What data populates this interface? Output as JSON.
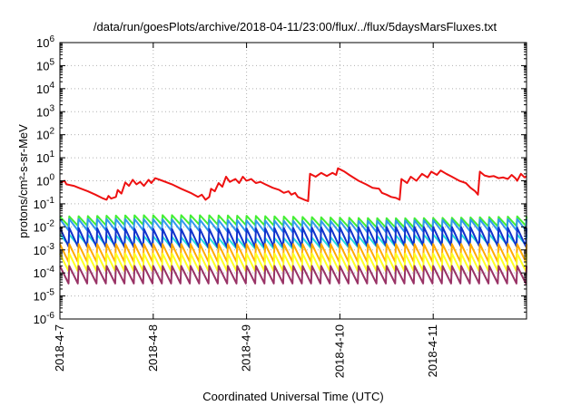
{
  "chart_data": {
    "type": "line",
    "title": "/data/run/goesPlots/archive/2018-04-11/23:00/flux/../flux/5daysMarsFluxes.txt",
    "xlabel": "Coordinated Universal Time (UTC)",
    "ylabel": "protons/cm²-s-sr-MeV",
    "y_scale": "log",
    "ylim": [
      1e-06,
      1000000.0
    ],
    "xlim": [
      0,
      5
    ],
    "grid": true,
    "y_ticks": [
      {
        "base": "10",
        "exp": "-6"
      },
      {
        "base": "10",
        "exp": "-5"
      },
      {
        "base": "10",
        "exp": "-4"
      },
      {
        "base": "10",
        "exp": "-3"
      },
      {
        "base": "10",
        "exp": "-2"
      },
      {
        "base": "10",
        "exp": "-1"
      },
      {
        "base": "10",
        "exp": "0"
      },
      {
        "base": "10",
        "exp": "1"
      },
      {
        "base": "10",
        "exp": "2"
      },
      {
        "base": "10",
        "exp": "3"
      },
      {
        "base": "10",
        "exp": "4"
      },
      {
        "base": "10",
        "exp": "5"
      },
      {
        "base": "10",
        "exp": "6"
      }
    ],
    "x_ticks": [
      {
        "label": "2018-4-7",
        "x": 0
      },
      {
        "label": "2018-4-8",
        "x": 1
      },
      {
        "label": "2018-4-9",
        "x": 2
      },
      {
        "label": "2018-4-10",
        "x": 3
      },
      {
        "label": "2018-4-11",
        "x": 4
      }
    ],
    "series": [
      {
        "color": "#ee1111",
        "width": 2,
        "points": [
          [
            0.0,
            0.8
          ],
          [
            0.05,
            1.0
          ],
          [
            0.07,
            0.7
          ],
          [
            0.15,
            0.6
          ],
          [
            0.2,
            0.5
          ],
          [
            0.3,
            0.35
          ],
          [
            0.38,
            0.25
          ],
          [
            0.45,
            0.18
          ],
          [
            0.5,
            0.15
          ],
          [
            0.52,
            0.22
          ],
          [
            0.55,
            0.17
          ],
          [
            0.6,
            0.2
          ],
          [
            0.62,
            0.4
          ],
          [
            0.66,
            0.28
          ],
          [
            0.7,
            0.85
          ],
          [
            0.74,
            0.6
          ],
          [
            0.78,
            1.1
          ],
          [
            0.82,
            0.7
          ],
          [
            0.86,
            0.9
          ],
          [
            0.9,
            0.6
          ],
          [
            0.95,
            1.1
          ],
          [
            0.98,
            0.8
          ],
          [
            1.02,
            1.3
          ],
          [
            1.1,
            1.0
          ],
          [
            1.2,
            0.7
          ],
          [
            1.3,
            0.45
          ],
          [
            1.4,
            0.3
          ],
          [
            1.48,
            0.2
          ],
          [
            1.52,
            0.25
          ],
          [
            1.56,
            0.15
          ],
          [
            1.6,
            0.2
          ],
          [
            1.62,
            0.45
          ],
          [
            1.66,
            0.35
          ],
          [
            1.7,
            0.8
          ],
          [
            1.74,
            0.55
          ],
          [
            1.78,
            1.5
          ],
          [
            1.82,
            0.9
          ],
          [
            1.88,
            1.2
          ],
          [
            1.92,
            0.8
          ],
          [
            1.96,
            1.5
          ],
          [
            2.0,
            1.0
          ],
          [
            2.05,
            1.2
          ],
          [
            2.1,
            0.8
          ],
          [
            2.15,
            0.9
          ],
          [
            2.2,
            0.7
          ],
          [
            2.28,
            0.5
          ],
          [
            2.35,
            0.4
          ],
          [
            2.4,
            0.3
          ],
          [
            2.45,
            0.35
          ],
          [
            2.48,
            0.25
          ],
          [
            2.52,
            0.3
          ],
          [
            2.55,
            0.2
          ],
          [
            2.62,
            0.15
          ],
          [
            2.66,
            0.13
          ],
          [
            2.68,
            2.0
          ],
          [
            2.74,
            1.5
          ],
          [
            2.8,
            2.2
          ],
          [
            2.86,
            1.6
          ],
          [
            2.92,
            2.2
          ],
          [
            2.96,
            1.8
          ],
          [
            2.98,
            3.5
          ],
          [
            3.05,
            2.5
          ],
          [
            3.1,
            1.8
          ],
          [
            3.2,
            1.0
          ],
          [
            3.28,
            0.7
          ],
          [
            3.35,
            0.5
          ],
          [
            3.42,
            0.45
          ],
          [
            3.45,
            0.3
          ],
          [
            3.5,
            0.25
          ],
          [
            3.55,
            0.2
          ],
          [
            3.6,
            0.18
          ],
          [
            3.64,
            0.15
          ],
          [
            3.66,
            1.2
          ],
          [
            3.72,
            0.8
          ],
          [
            3.76,
            1.5
          ],
          [
            3.82,
            1.0
          ],
          [
            3.88,
            2.0
          ],
          [
            3.94,
            1.4
          ],
          [
            3.98,
            2.5
          ],
          [
            4.04,
            1.8
          ],
          [
            4.08,
            2.8
          ],
          [
            4.14,
            2.0
          ],
          [
            4.2,
            1.5
          ],
          [
            4.28,
            1.0
          ],
          [
            4.35,
            0.8
          ],
          [
            4.4,
            0.5
          ],
          [
            4.45,
            0.35
          ],
          [
            4.48,
            0.25
          ],
          [
            4.5,
            2.5
          ],
          [
            4.55,
            1.7
          ],
          [
            4.6,
            1.5
          ],
          [
            4.65,
            1.6
          ],
          [
            4.7,
            1.3
          ],
          [
            4.75,
            1.4
          ],
          [
            4.8,
            1.2
          ],
          [
            4.84,
            1.8
          ],
          [
            4.88,
            1.3
          ],
          [
            4.9,
            1.0
          ],
          [
            4.94,
            2.0
          ],
          [
            4.98,
            1.4
          ],
          [
            5.0,
            1.6
          ]
        ]
      }
    ],
    "sawtooth_series": [
      {
        "color": "#44ee33",
        "high": 0.028,
        "low": 0.011,
        "trend": 1.15
      },
      {
        "color": "#3399ee",
        "high": 0.02,
        "low": 0.0065,
        "trend": 1.1
      },
      {
        "color": "#22dddd",
        "high": 0.004,
        "low": 0.0014,
        "trend": 1.2
      },
      {
        "color": "#1133cc",
        "high": 0.009,
        "low": 0.0014,
        "trend": 1.1
      },
      {
        "color": "#ffaa00",
        "high": 0.0018,
        "low": 0.0003,
        "trend": 1.0
      },
      {
        "color": "#ffff22",
        "high": 0.0007,
        "low": 0.00012,
        "trend": 1.0
      },
      {
        "color": "#993366",
        "high": 0.0002,
        "low": 3.5e-05,
        "trend": 1.0
      }
    ],
    "sawtooth_period_days": 0.1
  }
}
